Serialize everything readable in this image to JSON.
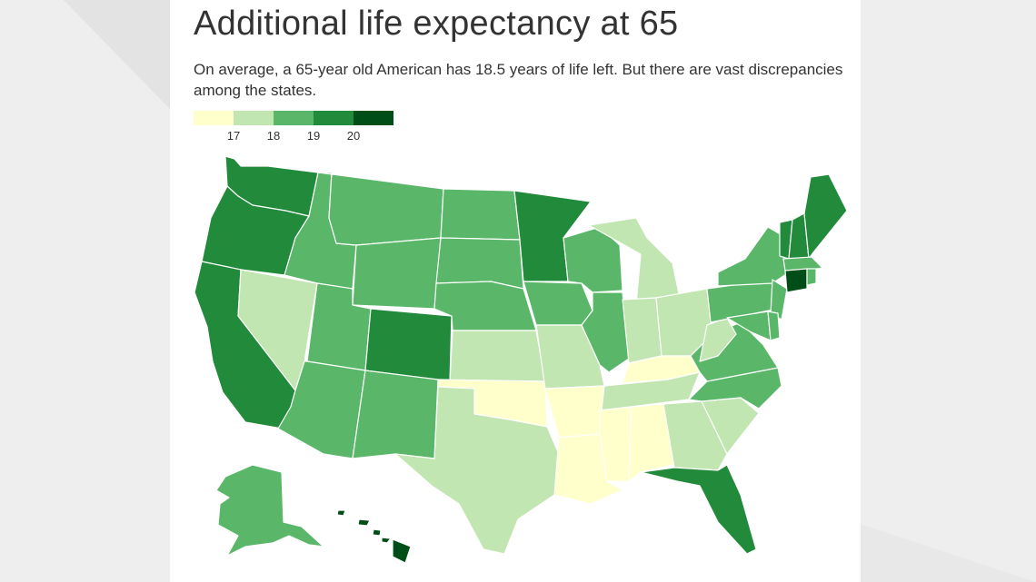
{
  "title": "Additional life expectancy at 65",
  "subtitle": "On average, a 65-year old American has 18.5 years of life left. But there are vast discrepancies among the states.",
  "legend": {
    "colors": [
      "#ffffcc",
      "#c2e6b1",
      "#5ab769",
      "#218a3b",
      "#004e17"
    ],
    "ticks": [
      "17",
      "18",
      "19",
      "20"
    ]
  },
  "colors": {
    "border": "#ffffff",
    "text": "#333333"
  },
  "states": {
    "WA": 3,
    "OR": 3,
    "CA": 3,
    "NV": 1,
    "ID": 2,
    "MT": 2,
    "WY": 2,
    "UT": 2,
    "AZ": 2,
    "CO": 3,
    "NM": 2,
    "ND": 2,
    "SD": 2,
    "NE": 2,
    "KS": 1,
    "OK": 0,
    "TX": 1,
    "MN": 3,
    "IA": 2,
    "MO": 1,
    "AR": 0,
    "LA": 0,
    "WI": 2,
    "IL": 2,
    "MI": 1,
    "IN": 1,
    "OH": 1,
    "KY": 0,
    "TN": 1,
    "MS": 0,
    "AL": 0,
    "GA": 1,
    "FL": 3,
    "SC": 1,
    "NC": 2,
    "VA": 2,
    "WV": 1,
    "PA": 2,
    "NY": 2,
    "NJ": 2,
    "DE": 2,
    "MD": 2,
    "ME": 3,
    "NH": 3,
    "VT": 3,
    "MA": 2,
    "RI": 2,
    "CT": 4,
    "AK": 2,
    "HI": 4
  }
}
